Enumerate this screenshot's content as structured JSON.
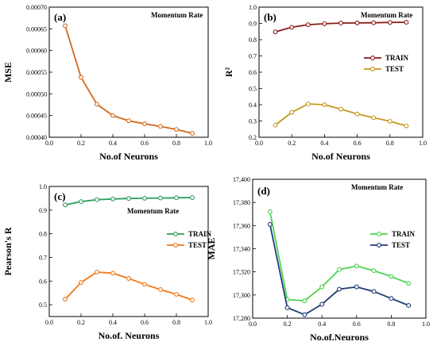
{
  "chart_data": [
    {
      "type": "line",
      "panel_label": "(a)",
      "annotation": "Momentum Rate",
      "xlabel": "No.of Neurons",
      "ylabel": "MSE",
      "xlim": [
        0.0,
        1.0
      ],
      "ylim": [
        0.0004,
        0.0007
      ],
      "xticks": [
        0.0,
        0.2,
        0.4,
        0.6,
        0.8,
        1.0
      ],
      "xtick_labels": [
        "0.0",
        "0.2",
        "0.4",
        "0.6",
        "0.8",
        "1.0"
      ],
      "yticks": [
        0.0004,
        0.00045,
        0.0005,
        0.00055,
        0.0006,
        0.00065,
        0.0007
      ],
      "ytick_labels": [
        "0.00040",
        "0.00045",
        "0.00050",
        "0.00055",
        "0.00060",
        "0.00065",
        "0.00070"
      ],
      "x": [
        0.1,
        0.2,
        0.3,
        0.4,
        0.5,
        0.6,
        0.7,
        0.8,
        0.9
      ],
      "legend": "none",
      "series": [
        {
          "color": "#d2691e",
          "values": [
            0.000657,
            0.000538,
            0.000476,
            0.00045,
            0.000438,
            0.000431,
            0.000425,
            0.000418,
            0.000409
          ]
        }
      ]
    },
    {
      "type": "line",
      "panel_label": "(b)",
      "annotation": "Momentum Rate",
      "xlabel": "No.of Neurons",
      "ylabel": "R²",
      "xlim": [
        0.0,
        1.0
      ],
      "ylim": [
        0.2,
        1.0
      ],
      "xticks": [
        0.0,
        0.2,
        0.4,
        0.6,
        0.8,
        1.0
      ],
      "xtick_labels": [
        "0.0",
        "0.2",
        "0.4",
        "0.6",
        "0.8",
        "1.0"
      ],
      "yticks": [
        0.2,
        0.3,
        0.4,
        0.5,
        0.6,
        0.7,
        0.8,
        0.9,
        1.0
      ],
      "ytick_labels": [
        "0.2",
        "0.3",
        "0.4",
        "0.5",
        "0.6",
        "0.7",
        "0.8",
        "0.9",
        "1.0"
      ],
      "x": [
        0.1,
        0.2,
        0.3,
        0.4,
        0.5,
        0.6,
        0.7,
        0.8,
        0.9
      ],
      "legend": "right",
      "series": [
        {
          "name": "TRAIN",
          "color": "#8b1a1a",
          "values": [
            0.848,
            0.876,
            0.892,
            0.898,
            0.902,
            0.903,
            0.904,
            0.906,
            0.907
          ]
        },
        {
          "name": "TEST",
          "color": "#c8961e",
          "values": [
            0.275,
            0.353,
            0.405,
            0.4,
            0.373,
            0.343,
            0.32,
            0.298,
            0.27
          ]
        }
      ]
    },
    {
      "type": "line",
      "panel_label": "(c)",
      "annotation": "Momentum Rate",
      "xlabel": "No.of. Neurons",
      "ylabel": "Pearson's R",
      "xlim": [
        0.0,
        1.0
      ],
      "ylim": [
        0.45,
        1.0
      ],
      "xticks": [
        0.0,
        0.2,
        0.4,
        0.6,
        0.8,
        1.0
      ],
      "xtick_labels": [
        "0.0",
        "0.2",
        "0.4",
        "0.6",
        "0.8",
        "1.0"
      ],
      "yticks": [
        0.5,
        0.6,
        0.7,
        0.8,
        0.9,
        1.0
      ],
      "ytick_labels": [
        "0.5",
        "0.6",
        "0.7",
        "0.8",
        "0.9",
        "1.0"
      ],
      "x": [
        0.1,
        0.2,
        0.3,
        0.4,
        0.5,
        0.6,
        0.7,
        0.8,
        0.9
      ],
      "legend": "right",
      "series": [
        {
          "name": "TRAIN",
          "color": "#2e9e5b",
          "values": [
            0.922,
            0.936,
            0.944,
            0.947,
            0.949,
            0.95,
            0.951,
            0.952,
            0.953
          ]
        },
        {
          "name": "TEST",
          "color": "#f07a1a",
          "values": [
            0.523,
            0.594,
            0.638,
            0.633,
            0.611,
            0.586,
            0.564,
            0.544,
            0.52
          ]
        }
      ]
    },
    {
      "type": "line",
      "panel_label": "(d)",
      "annotation": "Momentum Rate",
      "xlabel": "No.of.Neurons",
      "ylabel": "MAE",
      "xlim": [
        0.0,
        1.0
      ],
      "ylim": [
        17280,
        17400
      ],
      "xticks": [
        0.0,
        0.2,
        0.4,
        0.6,
        0.8,
        1.0
      ],
      "xtick_labels": [
        "0.0",
        "0.2",
        "0.4",
        "0.6",
        "0.8",
        "1.0"
      ],
      "yticks": [
        17280,
        17300,
        17320,
        17340,
        17360,
        17380,
        17400
      ],
      "ytick_labels": [
        "17,280",
        "17,300",
        "17,320",
        "17,340",
        "17,360",
        "17,380",
        "17,400"
      ],
      "x": [
        0.1,
        0.2,
        0.3,
        0.4,
        0.5,
        0.6,
        0.7,
        0.8,
        0.9
      ],
      "legend": "right",
      "series": [
        {
          "name": "TRAIN",
          "color": "#4cd44c",
          "values": [
            17372,
            17296,
            17295,
            17307,
            17322,
            17325,
            17321,
            17316,
            17310
          ]
        },
        {
          "name": "TEST",
          "color": "#1f3a78",
          "values": [
            17361,
            17289,
            17283,
            17292,
            17305,
            17307,
            17303,
            17297,
            17291
          ]
        }
      ]
    }
  ]
}
